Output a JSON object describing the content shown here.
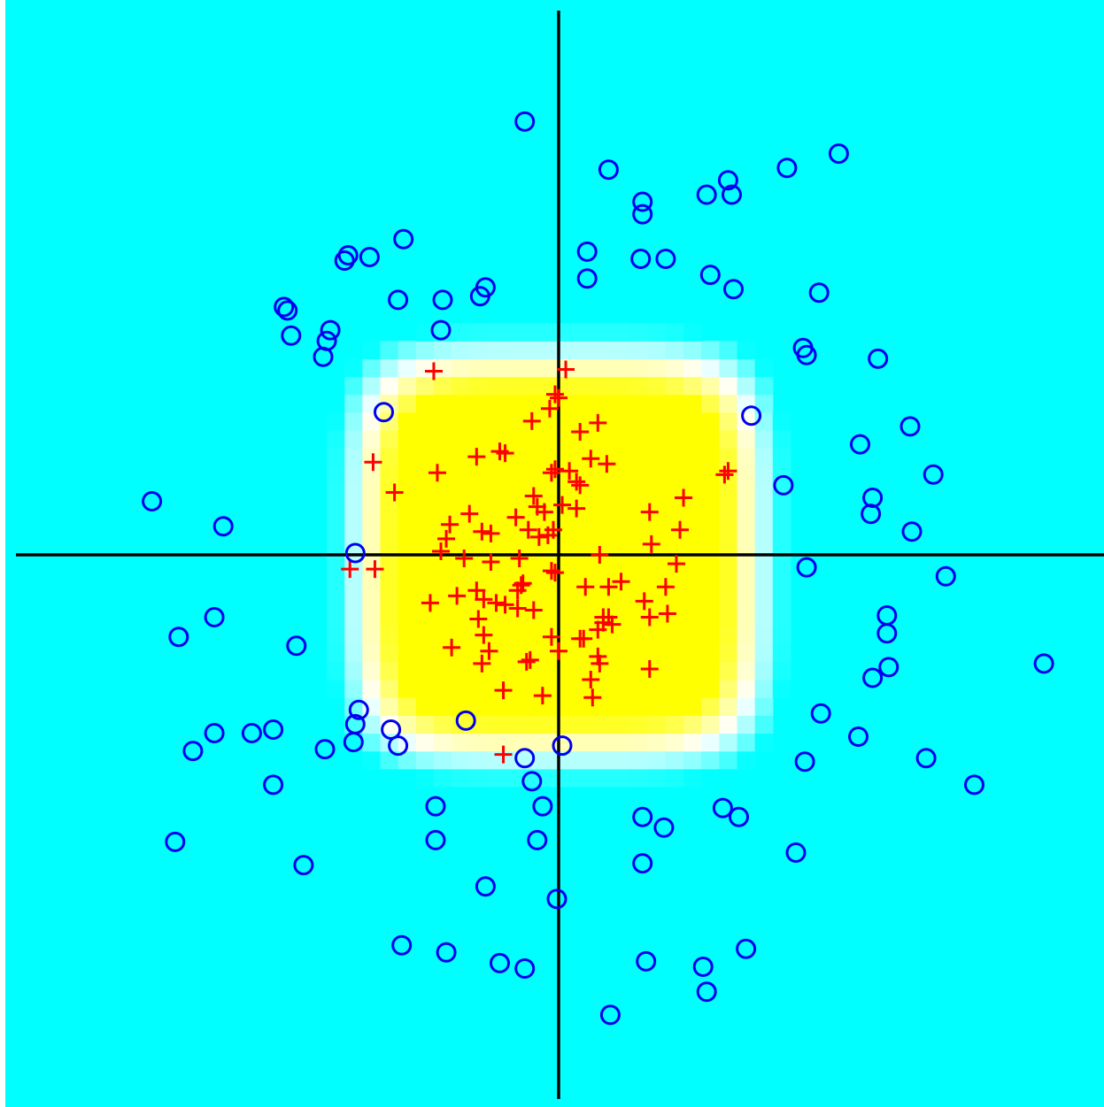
{
  "colors": {
    "background": "#ffffff",
    "outside_region": "#00ffff",
    "inside_region": "#ffff00",
    "blend_mid": "#ffffff",
    "positive_marker": "#ff0000",
    "negative_marker": "#0000ee",
    "axes": "#000000"
  },
  "chart_data": {
    "type": "scatter",
    "title": "",
    "xlabel": "",
    "ylabel": "",
    "xlim": [
      -3.06,
      3.06
    ],
    "ylim": [
      -3.06,
      3.06
    ],
    "axes_through_origin": true,
    "grid": false,
    "legend": "none",
    "decision_region": {
      "shape": "rounded-square",
      "x": [
        -1.1,
        1.1
      ],
      "y": [
        -1.1,
        1.1
      ],
      "feather": 0.35,
      "grid_step": 0.1
    },
    "series": [
      {
        "marker": "plus",
        "points": [
          [
            -0.7,
            1.03
          ],
          [
            0.04,
            1.04
          ],
          [
            -1.04,
            0.52
          ],
          [
            -0.68,
            0.46
          ],
          [
            -0.92,
            0.35
          ],
          [
            -0.46,
            0.55
          ],
          [
            -0.33,
            0.58
          ],
          [
            -0.3,
            0.57
          ],
          [
            -0.15,
            0.75
          ],
          [
            -0.05,
            0.82
          ],
          [
            -0.02,
            0.9
          ],
          [
            0.0,
            0.88
          ],
          [
            0.12,
            0.69
          ],
          [
            0.22,
            0.74
          ],
          [
            0.18,
            0.54
          ],
          [
            0.27,
            0.51
          ],
          [
            -0.02,
            0.48
          ],
          [
            -0.04,
            0.46
          ],
          [
            0.1,
            0.41
          ],
          [
            0.12,
            0.39
          ],
          [
            0.06,
            0.47
          ],
          [
            0.93,
            0.45
          ],
          [
            0.95,
            0.47
          ],
          [
            0.02,
            0.28
          ],
          [
            -0.08,
            0.24
          ],
          [
            -0.14,
            0.33
          ],
          [
            -0.12,
            0.27
          ],
          [
            -0.24,
            0.21
          ],
          [
            -0.5,
            0.23
          ],
          [
            -0.43,
            0.13
          ],
          [
            -0.38,
            0.12
          ],
          [
            -0.61,
            0.17
          ],
          [
            -0.63,
            0.09
          ],
          [
            -0.66,
            0.02
          ],
          [
            -0.17,
            0.14
          ],
          [
            -0.11,
            0.1
          ],
          [
            -0.06,
            0.11
          ],
          [
            -0.03,
            0.14
          ],
          [
            0.1,
            0.26
          ],
          [
            0.51,
            0.24
          ],
          [
            0.7,
            0.32
          ],
          [
            0.68,
            0.14
          ],
          [
            0.52,
            0.06
          ],
          [
            -0.53,
            -0.02
          ],
          [
            -1.17,
            -0.08
          ],
          [
            -1.03,
            -0.08
          ],
          [
            -0.38,
            -0.04
          ],
          [
            -0.22,
            -0.02
          ],
          [
            0.23,
            0.0
          ],
          [
            0.66,
            -0.05
          ],
          [
            -0.04,
            -0.09
          ],
          [
            -0.02,
            -0.1
          ],
          [
            -0.2,
            -0.16
          ],
          [
            -0.46,
            -0.2
          ],
          [
            -0.23,
            -0.2
          ],
          [
            -0.21,
            -0.17
          ],
          [
            -0.35,
            -0.27
          ],
          [
            -0.42,
            -0.25
          ],
          [
            -0.57,
            -0.23
          ],
          [
            -0.72,
            -0.27
          ],
          [
            -0.3,
            -0.28
          ],
          [
            -0.14,
            -0.31
          ],
          [
            -0.23,
            -0.3
          ],
          [
            -0.45,
            -0.36
          ],
          [
            0.15,
            -0.18
          ],
          [
            0.28,
            -0.18
          ],
          [
            0.35,
            -0.15
          ],
          [
            0.6,
            -0.18
          ],
          [
            0.48,
            -0.26
          ],
          [
            0.61,
            -0.33
          ],
          [
            0.51,
            -0.35
          ],
          [
            0.25,
            -0.35
          ],
          [
            0.28,
            -0.35
          ],
          [
            0.25,
            -0.38
          ],
          [
            0.3,
            -0.39
          ],
          [
            0.22,
            -0.42
          ],
          [
            0.12,
            -0.47
          ],
          [
            0.14,
            -0.47
          ],
          [
            -0.04,
            -0.46
          ],
          [
            -0.42,
            -0.45
          ],
          [
            -0.6,
            -0.52
          ],
          [
            -0.39,
            -0.54
          ],
          [
            -0.43,
            -0.61
          ],
          [
            -0.18,
            -0.6
          ],
          [
            -0.16,
            -0.59
          ],
          [
            0.0,
            -0.54
          ],
          [
            0.22,
            -0.57
          ],
          [
            0.23,
            -0.61
          ],
          [
            0.18,
            -0.7
          ],
          [
            0.51,
            -0.64
          ],
          [
            -0.31,
            -0.76
          ],
          [
            -0.09,
            -0.79
          ],
          [
            0.19,
            -0.8
          ],
          [
            -0.31,
            -1.12
          ]
        ]
      },
      {
        "marker": "circle",
        "points": [
          [
            -0.19,
            2.43
          ],
          [
            0.28,
            2.16
          ],
          [
            0.47,
            1.98
          ],
          [
            0.47,
            1.91
          ],
          [
            0.83,
            2.02
          ],
          [
            0.95,
            2.1
          ],
          [
            0.97,
            2.02
          ],
          [
            1.28,
            2.17
          ],
          [
            1.57,
            2.25
          ],
          [
            -0.87,
            1.77
          ],
          [
            -1.06,
            1.67
          ],
          [
            -1.18,
            1.68
          ],
          [
            -1.2,
            1.65
          ],
          [
            -1.54,
            1.39
          ],
          [
            -1.52,
            1.37
          ],
          [
            -1.28,
            1.26
          ],
          [
            -1.3,
            1.2
          ],
          [
            -1.5,
            1.23
          ],
          [
            -1.32,
            1.11
          ],
          [
            -0.9,
            1.43
          ],
          [
            -0.65,
            1.43
          ],
          [
            -0.44,
            1.45
          ],
          [
            -0.41,
            1.5
          ],
          [
            -0.66,
            1.26
          ],
          [
            0.16,
            1.7
          ],
          [
            0.16,
            1.55
          ],
          [
            0.46,
            1.66
          ],
          [
            0.6,
            1.66
          ],
          [
            0.85,
            1.57
          ],
          [
            0.98,
            1.49
          ],
          [
            1.46,
            1.47
          ],
          [
            1.37,
            1.16
          ],
          [
            1.39,
            1.12
          ],
          [
            1.79,
            1.1
          ],
          [
            -0.98,
            0.8
          ],
          [
            1.08,
            0.78
          ],
          [
            1.69,
            0.62
          ],
          [
            1.97,
            0.72
          ],
          [
            2.1,
            0.45
          ],
          [
            1.76,
            0.32
          ],
          [
            1.75,
            0.23
          ],
          [
            1.98,
            0.13
          ],
          [
            1.26,
            0.39
          ],
          [
            -2.28,
            0.3
          ],
          [
            -1.88,
            0.16
          ],
          [
            -1.14,
            0.01
          ],
          [
            1.39,
            -0.07
          ],
          [
            2.17,
            -0.12
          ],
          [
            -1.93,
            -0.35
          ],
          [
            -2.13,
            -0.46
          ],
          [
            -1.47,
            -0.51
          ],
          [
            2.72,
            -0.61
          ],
          [
            1.84,
            -0.34
          ],
          [
            1.84,
            -0.44
          ],
          [
            1.85,
            -0.63
          ],
          [
            1.76,
            -0.69
          ],
          [
            -1.12,
            -0.87
          ],
          [
            -0.94,
            -0.98
          ],
          [
            -1.14,
            -0.95
          ],
          [
            -1.15,
            -1.05
          ],
          [
            -0.9,
            -1.07
          ],
          [
            -0.52,
            -0.93
          ],
          [
            0.02,
            -1.07
          ],
          [
            -1.6,
            -0.98
          ],
          [
            -1.72,
            -1.0
          ],
          [
            -1.93,
            -1.0
          ],
          [
            -1.31,
            -1.09
          ],
          [
            -2.05,
            -1.1
          ],
          [
            -1.6,
            -1.29
          ],
          [
            -0.19,
            -1.14
          ],
          [
            -0.15,
            -1.27
          ],
          [
            -0.09,
            -1.41
          ],
          [
            1.47,
            -0.89
          ],
          [
            1.68,
            -1.02
          ],
          [
            1.38,
            -1.16
          ],
          [
            2.06,
            -1.14
          ],
          [
            2.33,
            -1.29
          ],
          [
            -0.69,
            -1.41
          ],
          [
            -0.69,
            -1.6
          ],
          [
            -0.12,
            -1.6
          ],
          [
            0.47,
            -1.47
          ],
          [
            0.59,
            -1.53
          ],
          [
            0.47,
            -1.73
          ],
          [
            0.92,
            -1.42
          ],
          [
            1.01,
            -1.47
          ],
          [
            1.33,
            -1.67
          ],
          [
            -2.15,
            -1.61
          ],
          [
            -1.43,
            -1.74
          ],
          [
            -0.41,
            -1.86
          ],
          [
            -0.01,
            -1.93
          ],
          [
            -0.88,
            -2.19
          ],
          [
            -0.63,
            -2.23
          ],
          [
            -0.33,
            -2.29
          ],
          [
            -0.19,
            -2.32
          ],
          [
            0.49,
            -2.28
          ],
          [
            0.81,
            -2.31
          ],
          [
            1.05,
            -2.21
          ],
          [
            0.83,
            -2.45
          ],
          [
            0.29,
            -2.58
          ]
        ]
      }
    ]
  }
}
